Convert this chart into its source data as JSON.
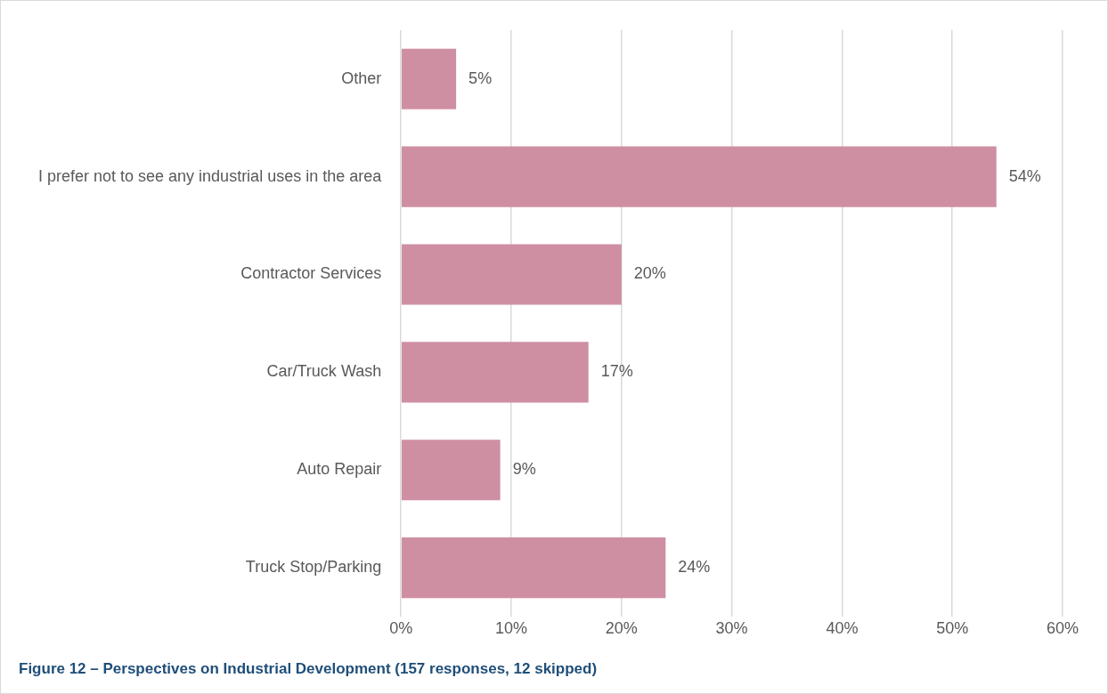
{
  "chart_data": {
    "type": "bar",
    "orientation": "horizontal",
    "title": "Figure 12 – Perspectives on Industrial Development (157 responses, 12 skipped)",
    "categories": [
      "Other",
      "I prefer not to see any industrial uses in the area",
      "Contractor Services",
      "Car/Truck Wash",
      "Auto Repair",
      "Truck Stop/Parking"
    ],
    "values": [
      5,
      54,
      20,
      17,
      9,
      24
    ],
    "color": "#cf8fa2",
    "xlim": [
      0,
      60
    ],
    "xticks": [
      {
        "value": 0,
        "label": "0%"
      },
      {
        "value": 10,
        "label": "10%"
      },
      {
        "value": 20,
        "label": "20%"
      },
      {
        "value": 30,
        "label": "30%"
      },
      {
        "value": 40,
        "label": "40%"
      },
      {
        "value": 50,
        "label": "50%"
      },
      {
        "value": 60,
        "label": "60%"
      }
    ],
    "value_labels": [
      "5%",
      "54%",
      "20%",
      "17%",
      "9%",
      "24%"
    ],
    "grid": "x",
    "legend": false
  }
}
